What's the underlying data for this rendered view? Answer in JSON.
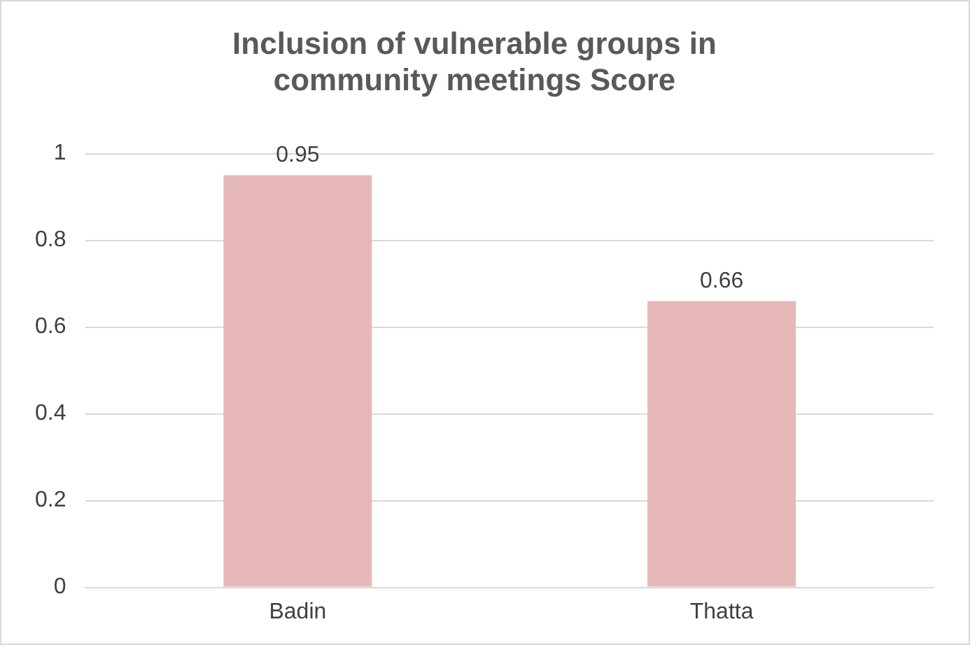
{
  "chart_data": {
    "type": "bar",
    "title": [
      "Inclusion of vulnerable groups in",
      "community meetings Score"
    ],
    "categories": [
      "Badin",
      "Thatta"
    ],
    "values": [
      0.95,
      0.66
    ],
    "color": "#e6b8b7",
    "ylim": [
      0,
      1
    ],
    "yticks": [
      0,
      0.2,
      0.4,
      0.6,
      0.8,
      1
    ],
    "grid": "y",
    "data_labels": true,
    "legend": false
  }
}
